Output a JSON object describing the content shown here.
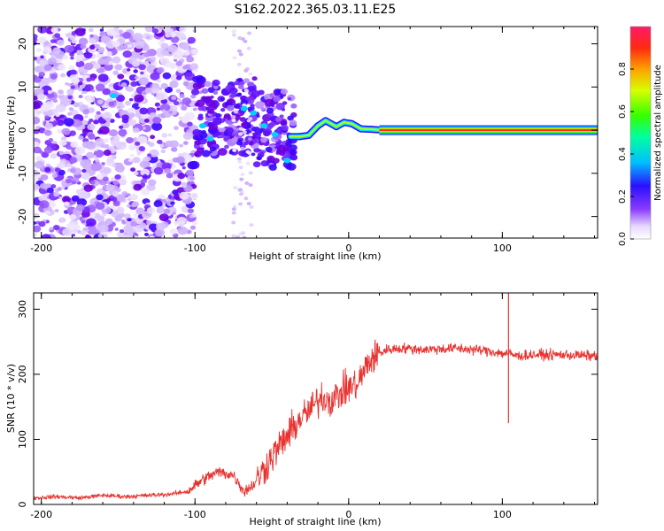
{
  "title": "S162.2022.365.03.11.E25",
  "chart_data": [
    {
      "type": "heatmap",
      "name": "spectrogram",
      "xlabel": "Height of straight line (km)",
      "ylabel": "Frequency (Hz)",
      "xlim": [
        -205,
        162
      ],
      "ylim": [
        -25,
        24
      ],
      "xticks": [
        -200,
        -100,
        0,
        100
      ],
      "yticks": [
        -20,
        -10,
        0,
        10,
        20
      ],
      "colorbar": {
        "label": "Normalized spectral amplitude",
        "range": [
          0,
          1
        ],
        "ticks": [
          0.0,
          0.2,
          0.4,
          0.6,
          0.8
        ]
      },
      "description_points": {
        "noise_region_km": [
          -205,
          -100
        ],
        "transition_region_km": [
          -100,
          -30
        ],
        "signal_line_freq_hz": 0,
        "signal_from_km": -35,
        "signal_to_km": 162
      }
    },
    {
      "type": "line",
      "name": "snr",
      "xlabel": "Height of straight line (km)",
      "ylabel": "SNR (10 * v/v)",
      "xlim": [
        -205,
        162
      ],
      "ylim": [
        0,
        325
      ],
      "xticks": [
        -200,
        -100,
        0,
        100
      ],
      "yticks": [
        0,
        100,
        200,
        300
      ],
      "color": "#e8322f",
      "series": [
        {
          "name": "SNR",
          "x": [
            -205,
            -190,
            -175,
            -160,
            -145,
            -130,
            -115,
            -105,
            -95,
            -85,
            -75,
            -68,
            -62,
            -55,
            -48,
            -40,
            -32,
            -25,
            -18,
            -12,
            -6,
            0,
            6,
            12,
            18,
            25,
            35,
            50,
            70,
            90,
            100,
            104,
            110,
            120,
            140,
            162
          ],
          "y": [
            10,
            12,
            10,
            14,
            12,
            14,
            16,
            20,
            38,
            50,
            45,
            20,
            30,
            55,
            80,
            105,
            130,
            145,
            165,
            160,
            170,
            180,
            185,
            215,
            230,
            238,
            240,
            238,
            240,
            236,
            232,
            232,
            228,
            230,
            230,
            228
          ]
        }
      ],
      "spike": {
        "x": 104,
        "y_max": 325,
        "y_min": 125
      }
    }
  ]
}
